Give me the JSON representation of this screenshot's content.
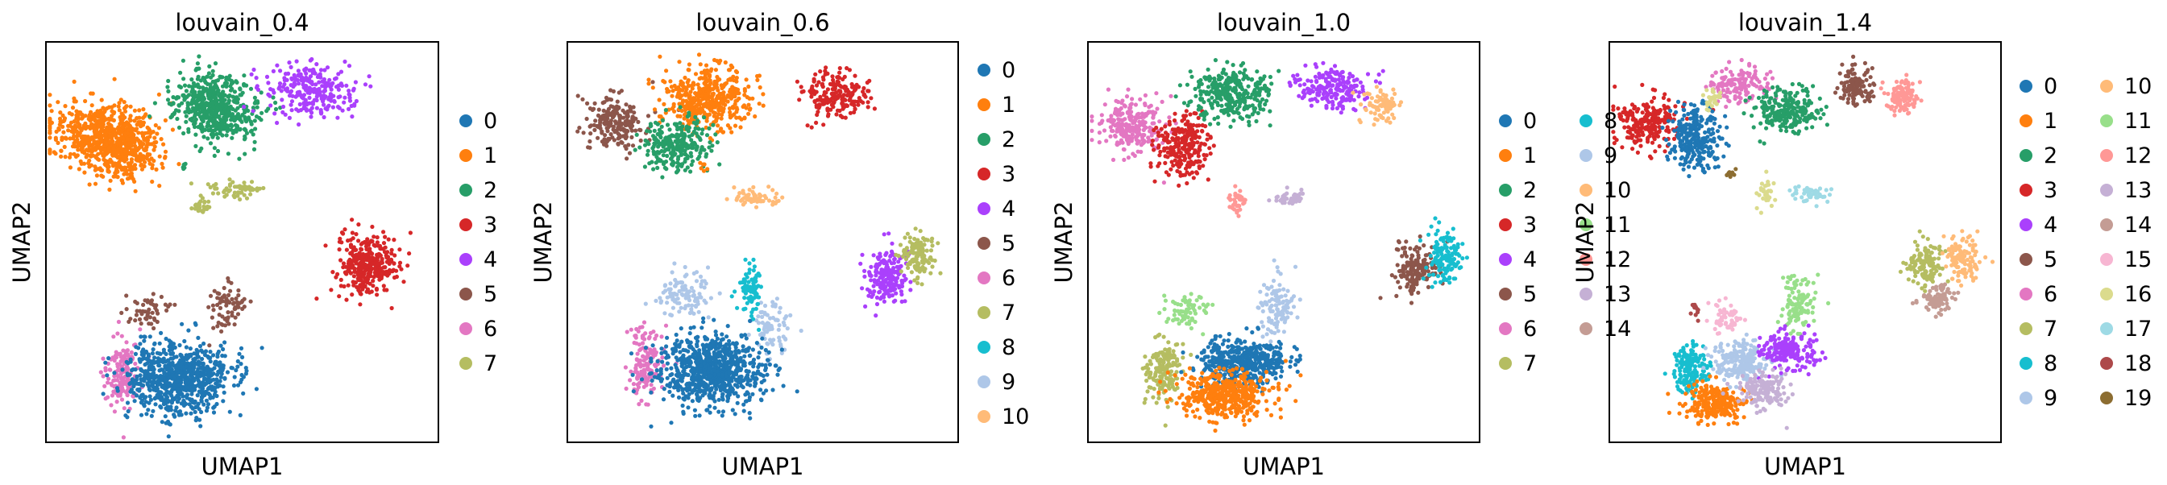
{
  "figure": {
    "background": "#ffffff"
  },
  "palette": [
    "#1f77b4",
    "#ff7f0e",
    "#279e68",
    "#d62728",
    "#aa40fc",
    "#8c564b",
    "#e377c2",
    "#b5bd61",
    "#17becf",
    "#aec7e8",
    "#ffbb78",
    "#98df8a",
    "#ff9896",
    "#c5b0d5",
    "#c49c94",
    "#f7b6d2",
    "#dbdb8d",
    "#9edae5",
    "#ad494a",
    "#8c6d31"
  ],
  "chart_data": [
    {
      "type": "scatter",
      "title": "louvain_0.4",
      "xlabel": "UMAP1",
      "ylabel": "UMAP2",
      "ticks": "none",
      "legend": {
        "placement": "right",
        "columns": 1,
        "entries": [
          "0",
          "1",
          "2",
          "3",
          "4",
          "5",
          "6",
          "7"
        ]
      }
    },
    {
      "type": "scatter",
      "title": "louvain_0.6",
      "xlabel": "UMAP1",
      "ylabel": "UMAP2",
      "ticks": "none",
      "legend": {
        "placement": "right",
        "columns": 1,
        "entries": [
          "0",
          "1",
          "2",
          "3",
          "4",
          "5",
          "6",
          "7",
          "8",
          "9",
          "10"
        ]
      }
    },
    {
      "type": "scatter",
      "title": "louvain_1.0",
      "xlabel": "UMAP1",
      "ylabel": "UMAP2",
      "ticks": "none",
      "legend": {
        "placement": "right",
        "columns": 2,
        "entries": [
          "0",
          "1",
          "2",
          "3",
          "4",
          "5",
          "6",
          "7",
          "8",
          "9",
          "10",
          "11",
          "12",
          "13",
          "14"
        ]
      }
    },
    {
      "type": "scatter",
      "title": "louvain_1.4",
      "xlabel": "UMAP1",
      "ylabel": "UMAP2",
      "ticks": "none",
      "legend": {
        "placement": "right",
        "columns": 2,
        "entries": [
          "0",
          "1",
          "2",
          "3",
          "4",
          "5",
          "6",
          "7",
          "8",
          "9",
          "10",
          "11",
          "12",
          "13",
          "14",
          "15",
          "16",
          "17",
          "18",
          "19"
        ]
      }
    }
  ]
}
